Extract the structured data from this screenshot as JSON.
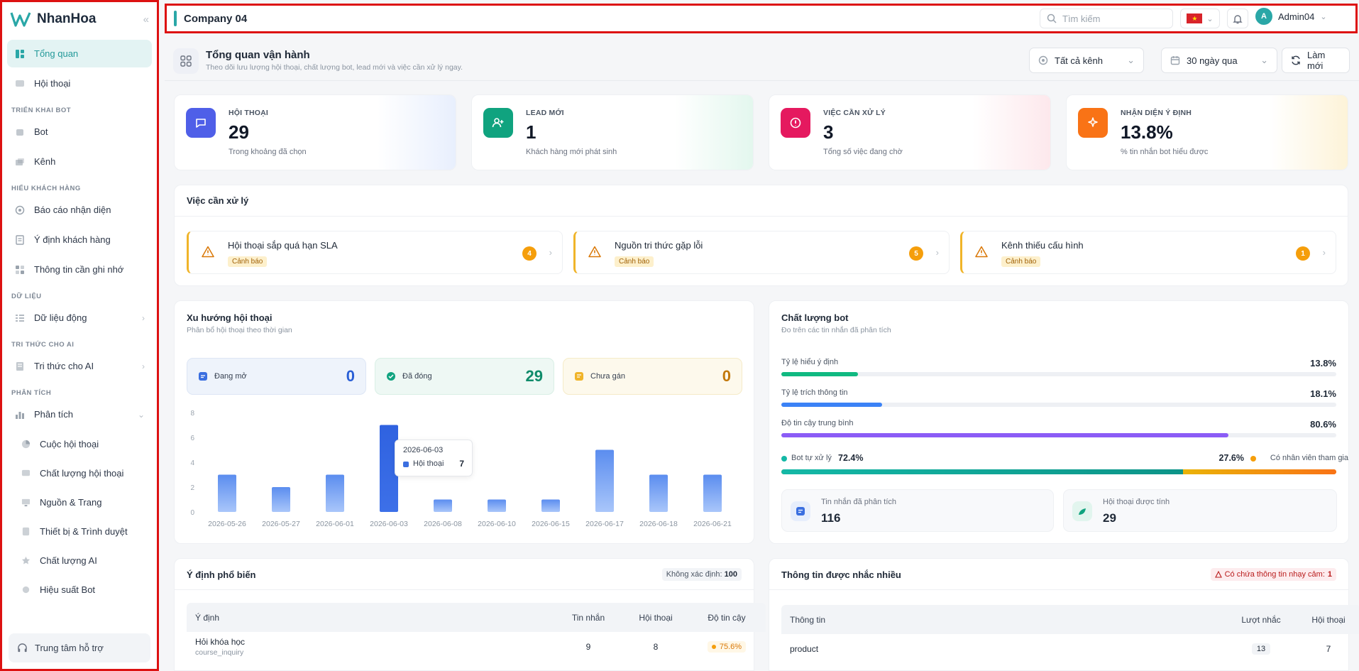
{
  "sidebar": {
    "brand": "NhanHoa",
    "items": [
      {
        "label": "Tổng quan"
      },
      {
        "label": "Hội thoại"
      }
    ],
    "sections": {
      "deploy": {
        "title": "TRIỂN KHAI BOT",
        "items": [
          {
            "label": "Bot"
          },
          {
            "label": "Kênh"
          }
        ]
      },
      "customers": {
        "title": "HIỂU KHÁCH HÀNG",
        "items": [
          {
            "label": "Báo cáo nhận diện"
          },
          {
            "label": "Ý định khách hàng"
          },
          {
            "label": "Thông tin cần ghi nhớ"
          }
        ]
      },
      "data": {
        "title": "DỮ LIỆU",
        "items": [
          {
            "label": "Dữ liệu động"
          }
        ]
      },
      "knowledge": {
        "title": "TRI THỨC CHO AI",
        "items": [
          {
            "label": "Tri thức cho AI"
          }
        ]
      },
      "analytics": {
        "title": "PHÂN TÍCH",
        "items": [
          {
            "label": "Phân tích"
          },
          {
            "label": "Cuộc hội thoại"
          },
          {
            "label": "Chất lượng hội thoại"
          },
          {
            "label": "Nguồn & Trang"
          },
          {
            "label": "Thiết bị & Trình duyệt"
          },
          {
            "label": "Chất lượng AI"
          },
          {
            "label": "Hiệu suất Bot"
          }
        ]
      }
    },
    "help": "Trung tâm hỗ trợ"
  },
  "topbar": {
    "company": "Company 04",
    "search_placeholder": "Tìm kiếm",
    "user": "Admin04",
    "avatar_letter": "A"
  },
  "header": {
    "title": "Tổng quan vận hành",
    "subtitle": "Theo dõi lưu lượng hội thoại, chất lượng bot, lead mới và việc cần xử lý ngay.",
    "channel_filter": "Tất cả kênh",
    "range_filter": "30 ngày qua",
    "refresh": "Làm mới"
  },
  "stats": [
    {
      "label": "HỘI THOẠI",
      "value": "29",
      "sub": "Trong khoảng đã chọn",
      "color": "#4f5fe8"
    },
    {
      "label": "LEAD MỚI",
      "value": "1",
      "sub": "Khách hàng mới phát sinh",
      "color": "#10a37f"
    },
    {
      "label": "VIỆC CẦN XỬ LÝ",
      "value": "3",
      "sub": "Tổng số việc đang chờ",
      "color": "#e5195f"
    },
    {
      "label": "NHẬN DIỆN Ý ĐỊNH",
      "value": "13.8%",
      "sub": "% tin nhắn bot hiểu được",
      "color": "#f97316"
    }
  ],
  "tasks": {
    "title": "Việc cần xử lý",
    "items": [
      {
        "title": "Hội thoại sắp quá hạn SLA",
        "badge": "Cảnh báo",
        "count": "4"
      },
      {
        "title": "Nguồn tri thức gặp lỗi",
        "badge": "Cảnh báo",
        "count": "5"
      },
      {
        "title": "Kênh thiếu cấu hình",
        "badge": "Cảnh báo",
        "count": "1"
      }
    ]
  },
  "trend": {
    "title": "Xu hướng hội thoại",
    "subtitle": "Phân bổ hội thoại theo thời gian",
    "minis": [
      {
        "label": "Đang mở",
        "value": "0"
      },
      {
        "label": "Đã đóng",
        "value": "29"
      },
      {
        "label": "Chưa gán",
        "value": "0"
      }
    ],
    "tooltip": {
      "date": "2026-06-03",
      "series": "Hội thoại",
      "value": "7"
    }
  },
  "chart_data": {
    "type": "bar",
    "categories": [
      "2026-05-26",
      "2026-05-27",
      "2026-06-01",
      "2026-06-03",
      "2026-06-08",
      "2026-06-10",
      "2026-06-15",
      "2026-06-17",
      "2026-06-18",
      "2026-06-21"
    ],
    "series": [
      {
        "name": "Hội thoại",
        "values": [
          3,
          2,
          3,
          7,
          1,
          1,
          1,
          5,
          3,
          3
        ],
        "color": "#5b8def"
      }
    ],
    "yticks": [
      "0",
      "2",
      "4",
      "6",
      "8"
    ],
    "ylim": [
      0,
      8
    ],
    "highlight_index": 3
  },
  "quality": {
    "title": "Chất lượng bot",
    "subtitle": "Đo trên các tin nhắn đã phân tích",
    "rows": [
      {
        "label": "Tỷ lệ hiểu ý định",
        "value": "13.8%",
        "fraction": 0.138,
        "color": "#10b981"
      },
      {
        "label": "Tỷ lệ trích thông tin",
        "value": "18.1%",
        "fraction": 0.181,
        "color": "#3b82f6"
      },
      {
        "label": "Độ tin cậy trung bình",
        "value": "80.6%",
        "fraction": 0.806,
        "color": "#8b5cf6"
      }
    ],
    "split": {
      "bot_label": "Bot tự xử lý",
      "bot_value": "72.4%",
      "bot_fraction": 0.724,
      "staff_value": "27.6%",
      "staff_label": "Có nhân viên tham gia"
    },
    "info": [
      {
        "label": "Tin nhắn đã phân tích",
        "value": "116"
      },
      {
        "label": "Hội thoại được tính",
        "value": "29"
      }
    ]
  },
  "intents": {
    "title": "Ý định phổ biến",
    "unknown_label": "Không xác định:",
    "unknown_value": "100",
    "columns": [
      "Ý định",
      "Tin nhắn",
      "Hội thoại",
      "Độ tin cậy"
    ],
    "rows": [
      {
        "name": "Hỏi khóa học",
        "code": "course_inquiry",
        "messages": "9",
        "conversations": "8",
        "confidence": "75.6%"
      }
    ]
  },
  "mentions": {
    "title": "Thông tin được nhắc nhiều",
    "sensitive_label": "Có chứa thông tin nhạy cảm:",
    "sensitive_value": "1",
    "columns": [
      "Thông tin",
      "Lượt nhắc",
      "Hội thoại"
    ],
    "rows": [
      {
        "name": "product",
        "mentions": "13",
        "conversations": "7"
      }
    ]
  }
}
